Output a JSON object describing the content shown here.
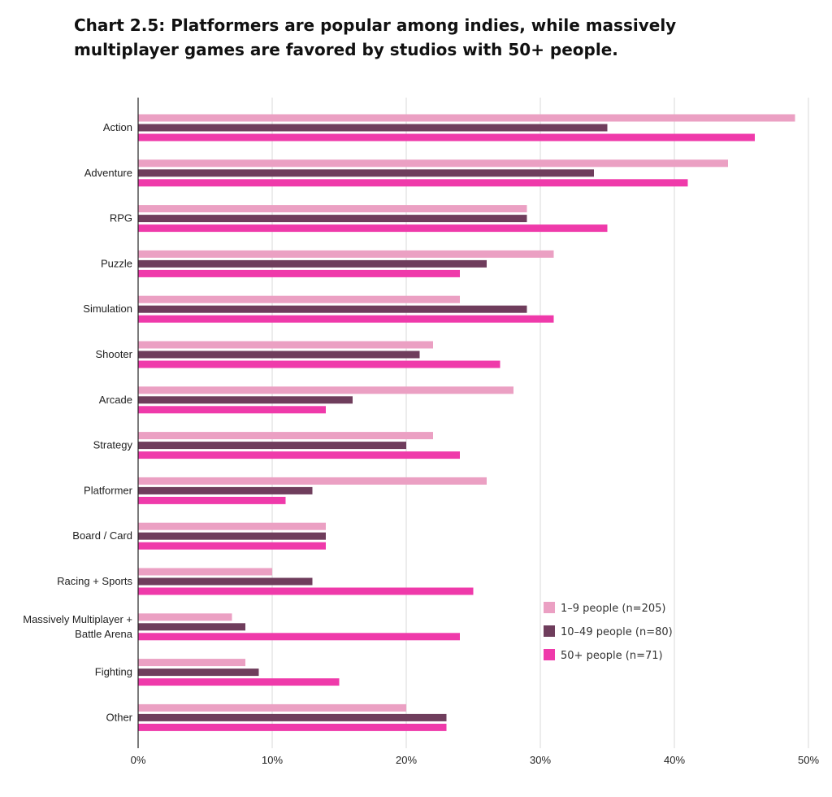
{
  "title_line1": "Chart 2.5: Platformers are popular among indies, while massively",
  "title_line2": "multiplayer games are favored by studios with 50+ people.",
  "chart_data": {
    "type": "bar",
    "orientation": "horizontal",
    "title": "Chart 2.5: Platformers are popular among indies, while massively multiplayer games are favored by studios with 50+ people.",
    "categories": [
      "Action",
      "Adventure",
      "RPG",
      "Puzzle",
      "Simulation",
      "Shooter",
      "Arcade",
      "Strategy",
      "Platformer",
      "Board / Card",
      "Racing + Sports",
      "Massively Multiplayer + Battle Arena",
      "Fighting",
      "Other"
    ],
    "category_lines": [
      [
        "Action"
      ],
      [
        "Adventure"
      ],
      [
        "RPG"
      ],
      [
        "Puzzle"
      ],
      [
        "Simulation"
      ],
      [
        "Shooter"
      ],
      [
        "Arcade"
      ],
      [
        "Strategy"
      ],
      [
        "Platformer"
      ],
      [
        "Board / Card"
      ],
      [
        "Racing + Sports"
      ],
      [
        "Massively Multiplayer +",
        "Battle Arena"
      ],
      [
        "Fighting"
      ],
      [
        "Other"
      ]
    ],
    "series": [
      {
        "name": "1–9 people (n=205)",
        "color": "#eba0c3",
        "values": [
          49,
          44,
          29,
          31,
          24,
          22,
          28,
          22,
          26,
          14,
          10,
          7,
          8,
          20
        ]
      },
      {
        "name": "10–49 people (n=80)",
        "color": "#6f3d5c",
        "values": [
          35,
          34,
          29,
          26,
          29,
          21,
          16,
          20,
          13,
          14,
          13,
          8,
          9,
          23
        ]
      },
      {
        "name": "50+ people (n=71)",
        "color": "#ef3aaa",
        "values": [
          46,
          41,
          35,
          24,
          31,
          27,
          14,
          24,
          11,
          14,
          25,
          24,
          15,
          23
        ]
      }
    ],
    "xlim": [
      0,
      50
    ],
    "xticks": [
      0,
      10,
      20,
      30,
      40,
      50
    ],
    "xtick_labels": [
      "0%",
      "10%",
      "20%",
      "30%",
      "40%",
      "50%"
    ],
    "grid": true,
    "legend_position": "bottom-right"
  }
}
